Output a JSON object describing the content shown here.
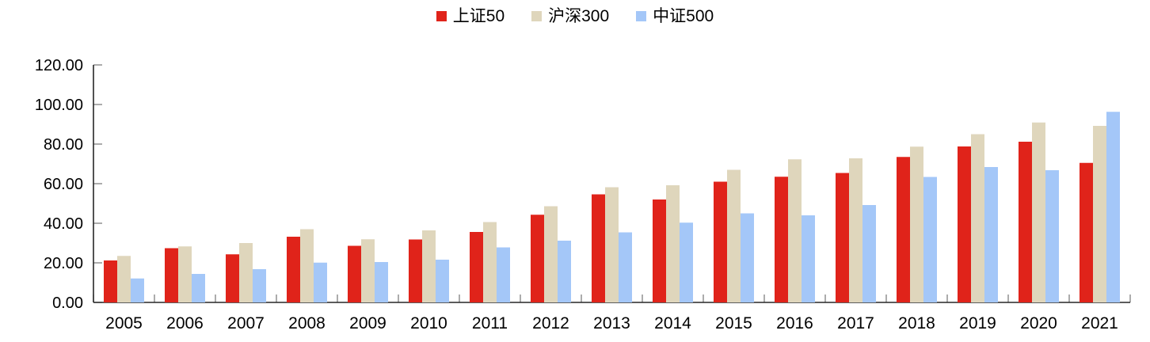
{
  "chart_data": {
    "type": "bar",
    "title": "",
    "categories": [
      "2005",
      "2006",
      "2007",
      "2008",
      "2009",
      "2010",
      "2011",
      "2012",
      "2013",
      "2014",
      "2015",
      "2016",
      "2017",
      "2018",
      "2019",
      "2020",
      "2021"
    ],
    "series": [
      {
        "name": "上证50",
        "color": "#E0231A",
        "values": [
          21.2,
          27.4,
          24.3,
          33.2,
          28.6,
          31.8,
          35.6,
          44.3,
          54.6,
          52.0,
          61.0,
          63.5,
          65.4,
          73.5,
          78.8,
          81.2,
          70.5
        ]
      },
      {
        "name": "沪深300",
        "color": "#DFD6BC",
        "values": [
          23.5,
          28.3,
          30.0,
          37.0,
          31.9,
          36.4,
          40.6,
          48.6,
          58.2,
          59.2,
          67.0,
          72.3,
          72.8,
          78.7,
          85.0,
          90.9,
          89.2
        ]
      },
      {
        "name": "中证500",
        "color": "#A4C7F8",
        "values": [
          12.1,
          14.4,
          16.8,
          20.1,
          20.4,
          21.6,
          27.8,
          31.2,
          35.4,
          40.3,
          45.0,
          44.0,
          49.2,
          63.4,
          68.4,
          66.8,
          96.3
        ]
      }
    ],
    "xlabel": "",
    "ylabel": "",
    "ylim": [
      0,
      120
    ],
    "ytick_step": 20,
    "ytick_format_decimals": 2,
    "ytick_labels": [
      "0.00",
      "20.00",
      "40.00",
      "60.00",
      "80.00",
      "100.00",
      "120.00"
    ],
    "grid": false,
    "legend_position": "top-center",
    "axis_color": "#262626",
    "tick_color": "#808080",
    "text_color": "#000000"
  }
}
